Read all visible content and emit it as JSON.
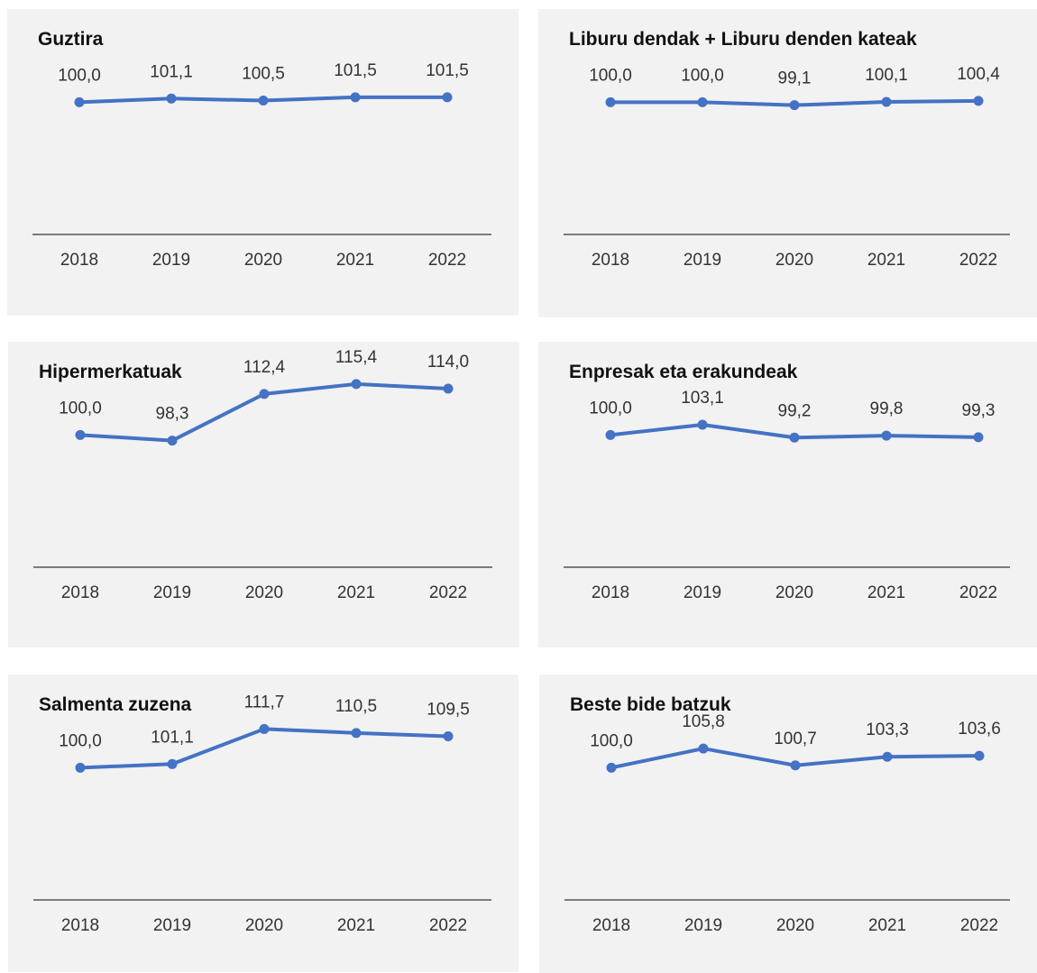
{
  "style": {
    "line_color": "#4472c4",
    "panel_bg": "#f2f2f2"
  },
  "chart_data": [
    {
      "type": "line",
      "title": "Guztira",
      "categories": [
        "2018",
        "2019",
        "2020",
        "2021",
        "2022"
      ],
      "values": [
        100.0,
        101.1,
        100.5,
        101.5,
        101.5
      ],
      "value_labels": [
        "100,0",
        "101,1",
        "100,5",
        "101,5",
        "101,5"
      ],
      "ylim": [
        60,
        120
      ],
      "grid": false,
      "legend": "none"
    },
    {
      "type": "line",
      "title": "Liburu dendak + Liburu denden kateak",
      "categories": [
        "2018",
        "2019",
        "2020",
        "2021",
        "2022"
      ],
      "values": [
        100.0,
        100.0,
        99.1,
        100.1,
        100.4
      ],
      "value_labels": [
        "100,0",
        "100,0",
        "99,1",
        "100,1",
        "100,4"
      ],
      "ylim": [
        60,
        120
      ],
      "grid": false,
      "legend": "none"
    },
    {
      "type": "line",
      "title": "Hipermerkatuak",
      "categories": [
        "2018",
        "2019",
        "2020",
        "2021",
        "2022"
      ],
      "values": [
        100.0,
        98.3,
        112.4,
        115.4,
        114.0
      ],
      "value_labels": [
        "100,0",
        "98,3",
        "112,4",
        "115,4",
        "114,0"
      ],
      "ylim": [
        60,
        120
      ],
      "grid": false,
      "legend": "none"
    },
    {
      "type": "line",
      "title": "Enpresak eta erakundeak",
      "categories": [
        "2018",
        "2019",
        "2020",
        "2021",
        "2022"
      ],
      "values": [
        100.0,
        103.1,
        99.2,
        99.8,
        99.3
      ],
      "value_labels": [
        "100,0",
        "103,1",
        "99,2",
        "99,8",
        "99,3"
      ],
      "ylim": [
        60,
        120
      ],
      "grid": false,
      "legend": "none"
    },
    {
      "type": "line",
      "title": "Salmenta zuzena",
      "categories": [
        "2018",
        "2019",
        "2020",
        "2021",
        "2022"
      ],
      "values": [
        100.0,
        101.1,
        111.7,
        110.5,
        109.5
      ],
      "value_labels": [
        "100,0",
        "101,1",
        "111,7",
        "110,5",
        "109,5"
      ],
      "ylim": [
        60,
        120
      ],
      "grid": false,
      "legend": "none"
    },
    {
      "type": "line",
      "title": "Beste bide batzuk",
      "categories": [
        "2018",
        "2019",
        "2020",
        "2021",
        "2022"
      ],
      "values": [
        100.0,
        105.8,
        100.7,
        103.3,
        103.6
      ],
      "value_labels": [
        "100,0",
        "105,8",
        "100,7",
        "103,3",
        "103,6"
      ],
      "ylim": [
        60,
        120
      ],
      "grid": false,
      "legend": "none"
    }
  ]
}
